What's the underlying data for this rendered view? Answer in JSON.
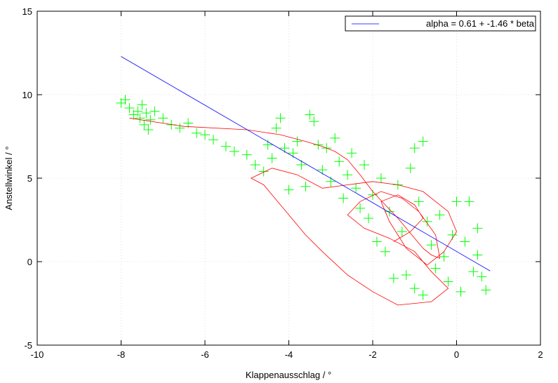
{
  "chart_data": {
    "type": "scatter",
    "title": "",
    "xlabel": "Klappenausschlag / °",
    "ylabel": "Anstellwinkel / °",
    "xlim": [
      -10,
      2
    ],
    "ylim": [
      -5,
      15
    ],
    "xticks": [
      -10,
      -8,
      -6,
      -4,
      -2,
      0,
      2
    ],
    "yticks": [
      -5,
      0,
      5,
      10,
      15
    ],
    "grid": true,
    "legend_position": "top-right",
    "colors": {
      "points": "#00ff00",
      "trace": "#ff0000",
      "fit": "#0000ff"
    },
    "fit": {
      "label": "alpha = 0.61 + -1.46 * beta",
      "intercept": 0.61,
      "slope": -1.46,
      "x_range": [
        -8,
        0.8
      ]
    },
    "series": [
      {
        "marker": "plus",
        "points": [
          [
            -8.0,
            9.5
          ],
          [
            -7.9,
            9.7
          ],
          [
            -7.8,
            9.2
          ],
          [
            -7.7,
            8.8
          ],
          [
            -7.6,
            9.0
          ],
          [
            -7.55,
            8.6
          ],
          [
            -7.5,
            9.4
          ],
          [
            -7.45,
            8.2
          ],
          [
            -7.4,
            8.9
          ],
          [
            -7.35,
            7.9
          ],
          [
            -7.3,
            8.5
          ],
          [
            -7.2,
            9.0
          ],
          [
            -7.0,
            8.6
          ],
          [
            -6.8,
            8.2
          ],
          [
            -6.6,
            8.0
          ],
          [
            -6.4,
            8.3
          ],
          [
            -6.2,
            7.7
          ],
          [
            -6.0,
            7.6
          ],
          [
            -5.8,
            7.3
          ],
          [
            -5.5,
            6.9
          ],
          [
            -5.3,
            6.6
          ],
          [
            -5.0,
            6.4
          ],
          [
            -4.8,
            5.8
          ],
          [
            -4.6,
            5.4
          ],
          [
            -4.5,
            7.0
          ],
          [
            -4.4,
            6.2
          ],
          [
            -4.3,
            8.0
          ],
          [
            -4.2,
            8.6
          ],
          [
            -4.1,
            6.8
          ],
          [
            -4.0,
            4.3
          ],
          [
            -3.9,
            6.5
          ],
          [
            -3.8,
            7.2
          ],
          [
            -3.7,
            5.8
          ],
          [
            -3.6,
            4.5
          ],
          [
            -3.5,
            8.8
          ],
          [
            -3.4,
            8.4
          ],
          [
            -3.3,
            7.0
          ],
          [
            -3.2,
            5.5
          ],
          [
            -3.1,
            6.8
          ],
          [
            -3.0,
            4.8
          ],
          [
            -2.9,
            7.4
          ],
          [
            -2.8,
            6.0
          ],
          [
            -2.7,
            3.8
          ],
          [
            -2.6,
            5.2
          ],
          [
            -2.5,
            6.5
          ],
          [
            -2.4,
            4.4
          ],
          [
            -2.3,
            3.2
          ],
          [
            -2.2,
            5.8
          ],
          [
            -2.1,
            2.6
          ],
          [
            -2.0,
            4.0
          ],
          [
            -1.9,
            1.2
          ],
          [
            -1.8,
            5.0
          ],
          [
            -1.7,
            0.6
          ],
          [
            -1.6,
            3.0
          ],
          [
            -1.5,
            -1.0
          ],
          [
            -1.4,
            4.6
          ],
          [
            -1.3,
            1.8
          ],
          [
            -1.2,
            -0.8
          ],
          [
            -1.1,
            5.6
          ],
          [
            -1.0,
            -1.6
          ],
          [
            -0.9,
            3.6
          ],
          [
            -0.8,
            -2.0
          ],
          [
            -0.7,
            2.4
          ],
          [
            -0.6,
            1.0
          ],
          [
            -0.5,
            -0.4
          ],
          [
            -0.4,
            2.8
          ],
          [
            -0.3,
            0.3
          ],
          [
            -0.2,
            -1.2
          ],
          [
            -0.1,
            1.6
          ],
          [
            0.0,
            3.6
          ],
          [
            0.1,
            -1.8
          ],
          [
            0.2,
            1.2
          ],
          [
            0.3,
            3.6
          ],
          [
            0.4,
            -0.6
          ],
          [
            0.5,
            0.4
          ],
          [
            0.6,
            -0.9
          ],
          [
            0.7,
            -1.7
          ],
          [
            -1.0,
            6.8
          ],
          [
            -0.8,
            7.2
          ],
          [
            0.5,
            2.0
          ]
        ]
      },
      {
        "name": "",
        "marker": "line",
        "points": [
          [
            -7.8,
            8.6
          ],
          [
            -6.5,
            8.1
          ],
          [
            -5.0,
            7.9
          ],
          [
            -4.2,
            7.6
          ],
          [
            -3.6,
            7.2
          ],
          [
            -3.2,
            6.9
          ],
          [
            -2.9,
            6.6
          ],
          [
            -2.6,
            6.1
          ],
          [
            -2.3,
            5.2
          ],
          [
            -2.0,
            4.2
          ],
          [
            -1.7,
            3.4
          ],
          [
            -1.4,
            2.6
          ],
          [
            -1.2,
            2.0
          ],
          [
            -1.0,
            1.4
          ],
          [
            -0.8,
            0.8
          ],
          [
            -0.6,
            0.4
          ],
          [
            -0.4,
            0.2
          ],
          [
            -0.5,
            1.6
          ],
          [
            -0.9,
            3.0
          ],
          [
            -1.3,
            3.8
          ],
          [
            -1.8,
            4.2
          ],
          [
            -2.3,
            3.6
          ],
          [
            -2.6,
            2.8
          ],
          [
            -2.2,
            2.0
          ],
          [
            -1.6,
            1.4
          ],
          [
            -1.0,
            0.6
          ],
          [
            -0.6,
            -0.6
          ],
          [
            -0.2,
            -1.6
          ],
          [
            -0.6,
            -2.4
          ],
          [
            -1.4,
            -2.6
          ],
          [
            -2.0,
            -1.8
          ],
          [
            -2.6,
            -0.8
          ],
          [
            -3.2,
            0.6
          ],
          [
            -3.6,
            1.6
          ],
          [
            -4.2,
            3.4
          ],
          [
            -4.6,
            4.6
          ],
          [
            -4.9,
            5.0
          ],
          [
            -4.4,
            5.6
          ],
          [
            -3.8,
            5.2
          ],
          [
            -3.2,
            4.4
          ],
          [
            -2.6,
            4.6
          ],
          [
            -2.0,
            4.8
          ],
          [
            -1.4,
            4.6
          ],
          [
            -0.8,
            4.2
          ],
          [
            -0.2,
            3.0
          ],
          [
            0.0,
            1.8
          ],
          [
            -0.3,
            0.6
          ],
          [
            -0.7,
            -0.2
          ],
          [
            -1.2,
            0.8
          ],
          [
            -1.6,
            2.4
          ],
          [
            -1.8,
            3.6
          ],
          [
            -1.4,
            4.0
          ],
          [
            -1.0,
            3.4
          ],
          [
            -0.8,
            2.6
          ],
          [
            -1.1,
            1.8
          ],
          [
            -1.5,
            1.2
          ]
        ]
      }
    ]
  }
}
